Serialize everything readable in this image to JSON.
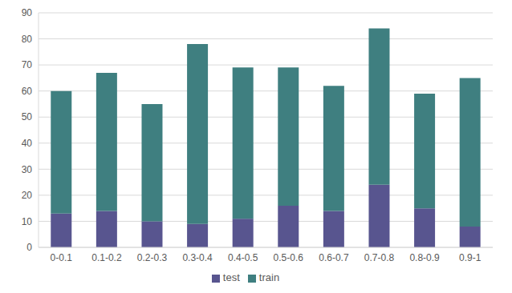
{
  "chart_data": {
    "type": "bar",
    "stacked": true,
    "categories": [
      "0-0.1",
      "0.1-0.2",
      "0.2-0.3",
      "0.3-0.4",
      "0.4-0.5",
      "0.5-0.6",
      "0.6-0.7",
      "0.7-0.8",
      "0.8-0.9",
      "0.9-1"
    ],
    "series": [
      {
        "name": "test",
        "color": "#58558f",
        "values": [
          13,
          14,
          10,
          9,
          11,
          16,
          14,
          24,
          15,
          8
        ]
      },
      {
        "name": "train",
        "color": "#3f7f80",
        "values": [
          47,
          53,
          45,
          69,
          58,
          53,
          48,
          60,
          44,
          57
        ]
      }
    ],
    "ylim": [
      0,
      90
    ],
    "yticks": [
      0,
      10,
      20,
      30,
      40,
      50,
      60,
      70,
      80,
      90
    ],
    "grid": true,
    "legend": "bottom"
  }
}
